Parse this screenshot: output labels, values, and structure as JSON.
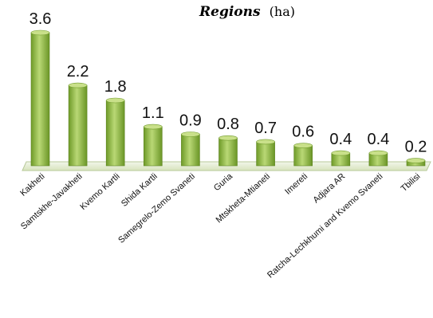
{
  "chart_data": {
    "type": "bar",
    "title": "Regions",
    "subtitle": "(ha)",
    "categories": [
      "Kakheti",
      "Samtskhe-Javakheti",
      "Kvemo Kartli",
      "Shida Kartli",
      "Samegrelo-Zemo Svaneti",
      "Guria",
      "Mtskheta-Mtianeti",
      "Imereti",
      "Adjara AR",
      "Ratcha-Lechkhumi and Kvemo Svaneti",
      "Tbilisi"
    ],
    "values": [
      3.6,
      2.2,
      1.8,
      1.1,
      0.9,
      0.8,
      0.7,
      0.6,
      0.4,
      0.4,
      0.2
    ],
    "value_labels": [
      "3.6",
      "2.2",
      "1.8",
      "1.1",
      "0.9",
      "0.8",
      "0.7",
      "0.6",
      "0.4",
      "0.4",
      "0.2"
    ],
    "ylim": [
      0,
      3.6
    ],
    "grid": false,
    "legend": "none",
    "bar_color": "#8ab43c",
    "bar_highlight": "#c9e08a",
    "floor_color": "#e6eed5"
  }
}
